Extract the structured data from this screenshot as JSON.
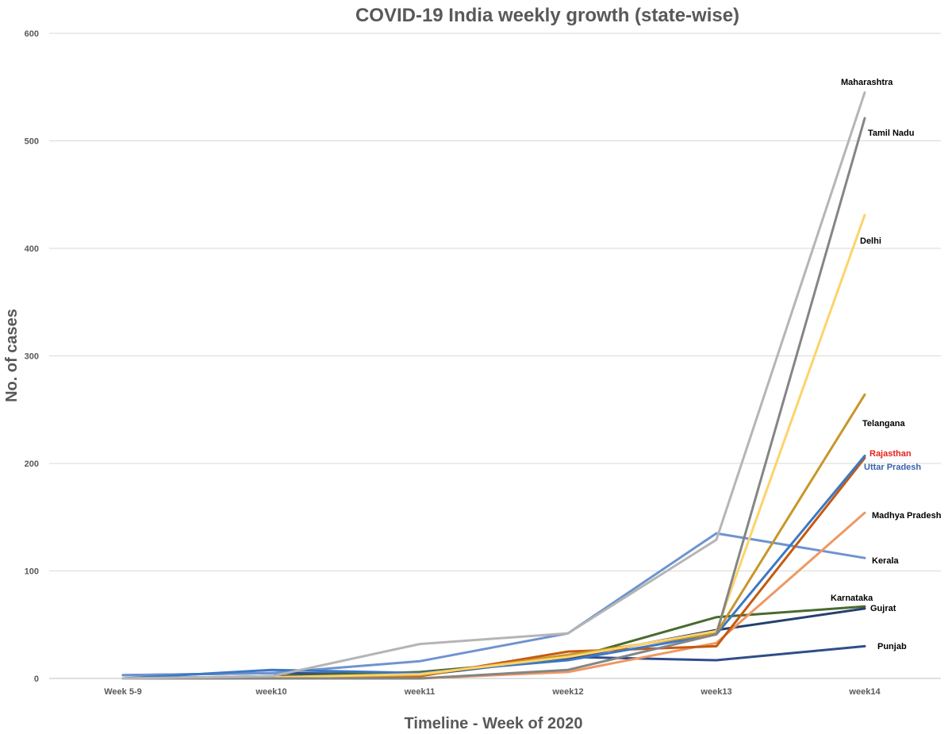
{
  "chart_data": {
    "type": "line",
    "title": "COVID-19 India weekly growth (state-wise)",
    "xlabel": "Timeline - Week of 2020",
    "ylabel": "No. of cases",
    "categories": [
      "Week 5-9",
      "week10",
      "week11",
      "week12",
      "week13",
      "week14"
    ],
    "ylim": [
      0,
      600
    ],
    "yticks": [
      0,
      100,
      200,
      300,
      400,
      500,
      600
    ],
    "grid": true,
    "series": [
      {
        "name": "Punjab",
        "color": "#2f4d8c",
        "values": [
          3,
          5,
          4,
          20,
          17,
          30
        ]
      },
      {
        "name": "Kerala",
        "color": "#6f93d1",
        "values": [
          3,
          5,
          16,
          42,
          135,
          112
        ]
      },
      {
        "name": "Karnataka",
        "color": "#4a6a2e",
        "values": [
          0,
          2,
          6,
          18,
          57,
          67
        ]
      },
      {
        "name": "Gujrat",
        "color": "#24406e",
        "values": [
          0,
          1,
          3,
          19,
          45,
          65
        ]
      },
      {
        "name": "Madhya Pradesh",
        "color": "#ee9863",
        "values": [
          0,
          0,
          0,
          6,
          33,
          154
        ]
      },
      {
        "name": "Rajasthan",
        "color": "#c55a11",
        "values": [
          0,
          1,
          2,
          25,
          30,
          205
        ]
      },
      {
        "name": "Uttar Pradesh",
        "color": "#3d78c5",
        "values": [
          0,
          8,
          5,
          17,
          41,
          207
        ]
      },
      {
        "name": "Telangana",
        "color": "#c8962a",
        "values": [
          0,
          1,
          3,
          22,
          42,
          264
        ]
      },
      {
        "name": "Delhi",
        "color": "#fdd36b",
        "values": [
          0,
          1,
          4,
          20,
          44,
          431
        ]
      },
      {
        "name": "Tamil Nadu",
        "color": "#858585",
        "values": [
          0,
          0,
          0,
          8,
          41,
          521
        ]
      },
      {
        "name": "Maharashtra",
        "color": "#b5b5b5",
        "values": [
          0,
          2,
          32,
          42,
          129,
          545
        ]
      }
    ],
    "annotations": [
      {
        "text": "Maharashtra",
        "color": "#000000"
      },
      {
        "text": "Tamil Nadu",
        "color": "#000000"
      },
      {
        "text": "Delhi",
        "color": "#000000"
      },
      {
        "text": "Telangana",
        "color": "#000000"
      },
      {
        "text": "Rajasthan",
        "color": "#e8201b"
      },
      {
        "text": "Uttar Pradesh",
        "color": "#3b62ad"
      },
      {
        "text": "Madhya Pradesh",
        "color": "#000000"
      },
      {
        "text": "Kerala",
        "color": "#000000"
      },
      {
        "text": "Karnataka",
        "color": "#000000"
      },
      {
        "text": "Gujrat",
        "color": "#000000"
      },
      {
        "text": "Punjab",
        "color": "#000000"
      }
    ]
  }
}
